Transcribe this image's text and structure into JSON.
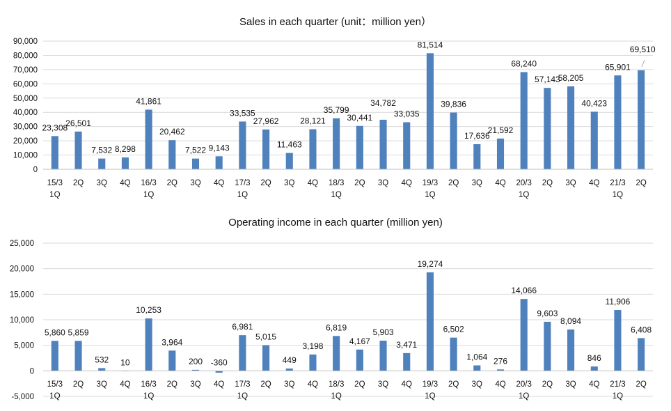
{
  "chart_data": [
    {
      "type": "bar",
      "title": "Sales in each quarter (unit：million yen）",
      "ylim": [
        0,
        90000
      ],
      "yticks": [
        "0",
        "10,000",
        "20,000",
        "30,000",
        "40,000",
        "50,000",
        "60,000",
        "70,000",
        "80,000",
        "90,000"
      ],
      "grid": true,
      "categories": [
        {
          "line1": "15/3",
          "line2": "1Q"
        },
        {
          "line1": "2Q",
          "line2": ""
        },
        {
          "line1": "3Q",
          "line2": ""
        },
        {
          "line1": "4Q",
          "line2": ""
        },
        {
          "line1": "16/3",
          "line2": "1Q"
        },
        {
          "line1": "2Q",
          "line2": ""
        },
        {
          "line1": "3Q",
          "line2": ""
        },
        {
          "line1": "4Q",
          "line2": ""
        },
        {
          "line1": "17/3",
          "line2": "1Q"
        },
        {
          "line1": "2Q",
          "line2": ""
        },
        {
          "line1": "3Q",
          "line2": ""
        },
        {
          "line1": "4Q",
          "line2": ""
        },
        {
          "line1": "18/3",
          "line2": "1Q"
        },
        {
          "line1": "2Q",
          "line2": ""
        },
        {
          "line1": "3Q",
          "line2": ""
        },
        {
          "line1": "4Q",
          "line2": ""
        },
        {
          "line1": "19/3",
          "line2": "1Q"
        },
        {
          "line1": "2Q",
          "line2": ""
        },
        {
          "line1": "3Q",
          "line2": ""
        },
        {
          "line1": "4Q",
          "line2": ""
        },
        {
          "line1": "20/3",
          "line2": "1Q"
        },
        {
          "line1": "2Q",
          "line2": ""
        },
        {
          "line1": "3Q",
          "line2": ""
        },
        {
          "line1": "4Q",
          "line2": ""
        },
        {
          "line1": "21/3",
          "line2": "1Q"
        },
        {
          "line1": "2Q",
          "line2": ""
        }
      ],
      "values": [
        23308,
        26501,
        7532,
        8298,
        41861,
        20462,
        7522,
        9143,
        33535,
        27962,
        11463,
        28121,
        35799,
        30441,
        34782,
        33035,
        81514,
        39836,
        17636,
        21592,
        68240,
        57143,
        58205,
        40423,
        65901,
        69510
      ],
      "data_labels": [
        "23,308",
        "26,501",
        "7,532",
        "8,298",
        "41,861",
        "20,462",
        "7,522",
        "9,143",
        "33,535",
        "27,962",
        "11,463",
        "28,121",
        "35,799",
        "30,441",
        "34,782",
        "33,035",
        "81,514",
        "39,836",
        "17,636",
        "21,592",
        "68,240",
        "57,143",
        "58,205",
        "40,423",
        "65,901",
        "69,510"
      ],
      "bar_color": "#4f81bd"
    },
    {
      "type": "bar",
      "title": "Operating income in each quarter (million yen)",
      "ylim": [
        -5000,
        25000
      ],
      "yticks": [
        "-5,000",
        "0",
        "5,000",
        "10,000",
        "15,000",
        "20,000",
        "25,000"
      ],
      "negative_tick_color": "#ff0000",
      "grid": true,
      "categories": [
        {
          "line1": "15/3",
          "line2": "1Q"
        },
        {
          "line1": "2Q",
          "line2": ""
        },
        {
          "line1": "3Q",
          "line2": ""
        },
        {
          "line1": "4Q",
          "line2": ""
        },
        {
          "line1": "16/3",
          "line2": "1Q"
        },
        {
          "line1": "2Q",
          "line2": ""
        },
        {
          "line1": "3Q",
          "line2": ""
        },
        {
          "line1": "4Q",
          "line2": ""
        },
        {
          "line1": "17/3",
          "line2": "1Q"
        },
        {
          "line1": "2Q",
          "line2": ""
        },
        {
          "line1": "3Q",
          "line2": ""
        },
        {
          "line1": "4Q",
          "line2": ""
        },
        {
          "line1": "18/3",
          "line2": "1Q"
        },
        {
          "line1": "2Q",
          "line2": ""
        },
        {
          "line1": "3Q",
          "line2": ""
        },
        {
          "line1": "4Q",
          "line2": ""
        },
        {
          "line1": "19/3",
          "line2": "1Q"
        },
        {
          "line1": "2Q",
          "line2": ""
        },
        {
          "line1": "3Q",
          "line2": ""
        },
        {
          "line1": "4Q",
          "line2": ""
        },
        {
          "line1": "20/3",
          "line2": "1Q"
        },
        {
          "line1": "2Q",
          "line2": ""
        },
        {
          "line1": "3Q",
          "line2": ""
        },
        {
          "line1": "4Q",
          "line2": ""
        },
        {
          "line1": "21/3",
          "line2": "1Q"
        },
        {
          "line1": "2Q",
          "line2": ""
        }
      ],
      "values": [
        5860,
        5859,
        532,
        10,
        10253,
        3964,
        200,
        -360,
        6981,
        5015,
        449,
        3198,
        6819,
        4167,
        5903,
        3471,
        19274,
        6502,
        1064,
        276,
        14066,
        9603,
        8094,
        846,
        11906,
        6408
      ],
      "data_labels": [
        "5,860",
        "5,859",
        "532",
        "10",
        "10,253",
        "3,964",
        "200",
        "-360",
        "6,981",
        "5,015",
        "449",
        "3,198",
        "6,819",
        "4,167",
        "5,903",
        "3,471",
        "19,274",
        "6,502",
        "1,064",
        "276",
        "14,066",
        "9,603",
        "8,094",
        "846",
        "11,906",
        "6,408"
      ],
      "bar_color": "#4f81bd",
      "negative_label_color": "#ff0000"
    }
  ]
}
